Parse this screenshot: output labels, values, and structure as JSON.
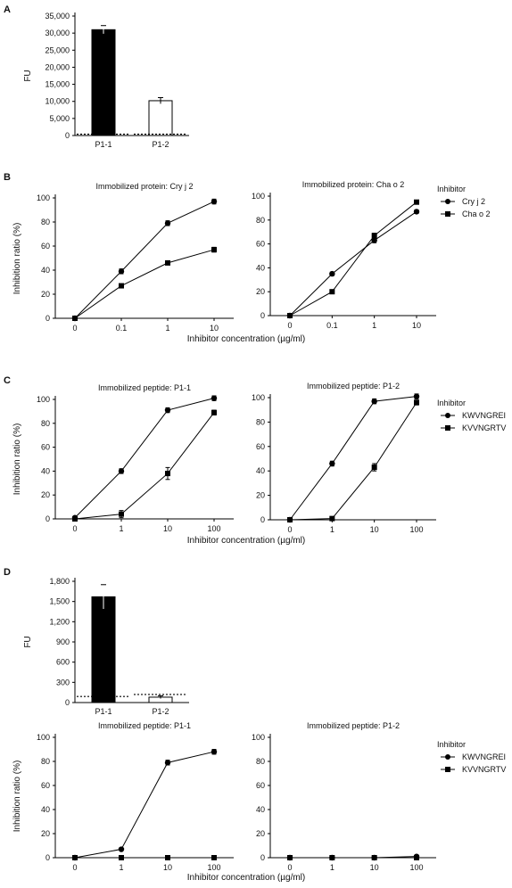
{
  "colors": {
    "ink": "#000000",
    "open_bar": "#ffffff",
    "filled_bar": "#000000"
  },
  "panels": [
    {
      "letter": "A"
    },
    {
      "letter": "B"
    },
    {
      "letter": "C"
    },
    {
      "letter": "D"
    }
  ],
  "chart_data": [
    {
      "panel": "A",
      "type": "bar",
      "ylabel": "FU",
      "categories": [
        "P1-1",
        "P1-2"
      ],
      "values": [
        31000,
        10200
      ],
      "errors": [
        1200,
        900
      ],
      "fills": [
        "filled",
        "open"
      ],
      "baselines": [
        400,
        400
      ],
      "ylim": [
        0,
        35000
      ],
      "yticks": [
        0,
        5000,
        10000,
        15000,
        20000,
        25000,
        30000,
        35000
      ],
      "yticklabels": [
        "0",
        "5,000",
        "10,000",
        "15,000",
        "20,000",
        "25,000",
        "30,000",
        "35,000"
      ]
    },
    {
      "panel": "B",
      "type": "line",
      "title": "Immobilized protein: Cry j 2",
      "ylabel": "Inhibition ratio (%)",
      "x": [
        "0",
        "0.1",
        "1",
        "10"
      ],
      "ylim": [
        0,
        100
      ],
      "yticks": [
        0,
        20,
        40,
        60,
        80,
        100
      ],
      "series": [
        {
          "name": "Cry j 2",
          "marker": "circle",
          "values": [
            0,
            39,
            79,
            97
          ],
          "errors": [
            0,
            2,
            2,
            2
          ]
        },
        {
          "name": "Cha o 2",
          "marker": "square",
          "values": [
            0,
            27,
            46,
            57
          ],
          "errors": [
            0,
            1.5,
            1.5,
            2
          ]
        }
      ]
    },
    {
      "panel": "B",
      "type": "line",
      "title": "Immobilized protein: Cha o 2",
      "x": [
        "0",
        "0.1",
        "1",
        "10"
      ],
      "ylim": [
        0,
        100
      ],
      "yticks": [
        0,
        20,
        40,
        60,
        80,
        100
      ],
      "legend": {
        "title": "Inhibitor",
        "position": "right"
      },
      "series": [
        {
          "name": "Cry j 2",
          "marker": "circle",
          "values": [
            0,
            35,
            63,
            87
          ],
          "errors": [
            0,
            1.5,
            2,
            1.5
          ]
        },
        {
          "name": "Cha o 2",
          "marker": "square",
          "values": [
            0,
            20,
            67,
            95
          ],
          "errors": [
            0,
            1.5,
            2,
            1.5
          ]
        }
      ],
      "shared_xlabel": "Inhibitor concentration (µg/ml)"
    },
    {
      "panel": "C",
      "type": "line",
      "title": "Immobilized peptide: P1-1",
      "ylabel": "Inhibition ratio (%)",
      "x": [
        "0",
        "1",
        "10",
        "100"
      ],
      "ylim": [
        0,
        100
      ],
      "yticks": [
        0,
        20,
        40,
        60,
        80,
        100
      ],
      "series": [
        {
          "name": "KWVNGREI",
          "marker": "circle",
          "values": [
            1,
            40,
            91,
            101
          ],
          "errors": [
            0,
            2,
            2,
            2
          ]
        },
        {
          "name": "KVVNGRTV",
          "marker": "square",
          "values": [
            0,
            4,
            38,
            89
          ],
          "errors": [
            0,
            3,
            5,
            2
          ]
        }
      ]
    },
    {
      "panel": "C",
      "type": "line",
      "title": "Immobilized peptide: P1-2",
      "x": [
        "0",
        "1",
        "10",
        "100"
      ],
      "ylim": [
        0,
        100
      ],
      "yticks": [
        0,
        20,
        40,
        60,
        80,
        100
      ],
      "legend": {
        "title": "Inhibitor",
        "position": "right"
      },
      "series": [
        {
          "name": "KWVNGREI",
          "marker": "circle",
          "values": [
            0,
            46,
            97,
            101
          ],
          "errors": [
            0,
            2,
            2,
            2
          ]
        },
        {
          "name": "KVVNGRTV",
          "marker": "square",
          "values": [
            0,
            1,
            43,
            96
          ],
          "errors": [
            0,
            1,
            3,
            2
          ]
        }
      ],
      "shared_xlabel": "Inhibitor concentration (µg/ml)"
    },
    {
      "panel": "D",
      "type": "bar",
      "ylabel": "FU",
      "categories": [
        "P1-1",
        "P1-2"
      ],
      "values": [
        1570,
        80
      ],
      "errors": [
        180,
        20
      ],
      "fills": [
        "filled",
        "open"
      ],
      "baselines": [
        90,
        120
      ],
      "ylim": [
        0,
        1800
      ],
      "yticks": [
        0,
        300,
        600,
        900,
        1200,
        1500,
        1800
      ],
      "yticklabels": [
        "0",
        "300",
        "600",
        "900",
        "1,200",
        "1,500",
        "1,800"
      ]
    },
    {
      "panel": "D",
      "type": "line",
      "title": "Immobilized peptide: P1-1",
      "ylabel": "Inhibition ratio (%)",
      "x": [
        "0",
        "1",
        "10",
        "100"
      ],
      "ylim": [
        0,
        100
      ],
      "yticks": [
        0,
        20,
        40,
        60,
        80,
        100
      ],
      "series": [
        {
          "name": "KWVNGREI",
          "marker": "circle",
          "values": [
            0,
            7,
            79,
            88
          ],
          "errors": [
            0,
            1,
            2,
            2
          ]
        },
        {
          "name": "KVVNGRTV",
          "marker": "square",
          "values": [
            0,
            0,
            0,
            0
          ],
          "errors": [
            0,
            0,
            0,
            0
          ]
        }
      ]
    },
    {
      "panel": "D",
      "type": "line",
      "title": "Immobilized peptide: P1-2",
      "x": [
        "0",
        "1",
        "10",
        "100"
      ],
      "ylim": [
        0,
        100
      ],
      "yticks": [
        0,
        20,
        40,
        60,
        80,
        100
      ],
      "legend": {
        "title": "Inhibitor",
        "position": "right"
      },
      "series": [
        {
          "name": "KWVNGREI",
          "marker": "circle",
          "values": [
            0,
            0,
            0,
            1
          ],
          "errors": [
            0,
            0,
            0,
            1
          ]
        },
        {
          "name": "KVVNGRTV",
          "marker": "square",
          "values": [
            0,
            0,
            0,
            0
          ],
          "errors": [
            0,
            0,
            0,
            0
          ]
        }
      ],
      "shared_xlabel": "Inhibitor concentration (µg/ml)"
    }
  ]
}
